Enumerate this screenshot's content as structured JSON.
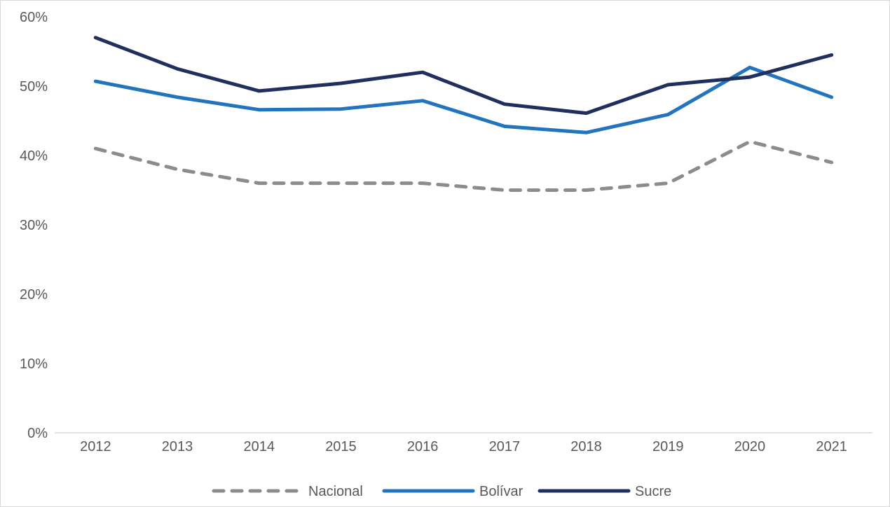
{
  "chart_data": {
    "type": "line",
    "categories": [
      "2012",
      "2013",
      "2014",
      "2015",
      "2016",
      "2017",
      "2018",
      "2019",
      "2020",
      "2021"
    ],
    "series": [
      {
        "name": "Nacional",
        "values": [
          41,
          38,
          36,
          36,
          36,
          35,
          35,
          36,
          42,
          39
        ],
        "color": "#8c8c8c",
        "dashed": true
      },
      {
        "name": "Bolívar",
        "values": [
          50.7,
          48.4,
          46.6,
          46.7,
          47.9,
          44.2,
          43.3,
          45.9,
          52.7,
          48.4
        ],
        "color": "#2174bd",
        "dashed": false
      },
      {
        "name": "Sucre",
        "values": [
          57,
          52.5,
          49.3,
          50.4,
          52,
          47.4,
          46.1,
          50.2,
          51.3,
          54.5
        ],
        "color": "#1f2f5e",
        "dashed": false
      }
    ],
    "y_ticks": [
      "0%",
      "10%",
      "20%",
      "30%",
      "40%",
      "50%",
      "60%"
    ],
    "ylim": [
      0,
      60
    ],
    "grid": false,
    "legend_position": "bottom-center"
  }
}
